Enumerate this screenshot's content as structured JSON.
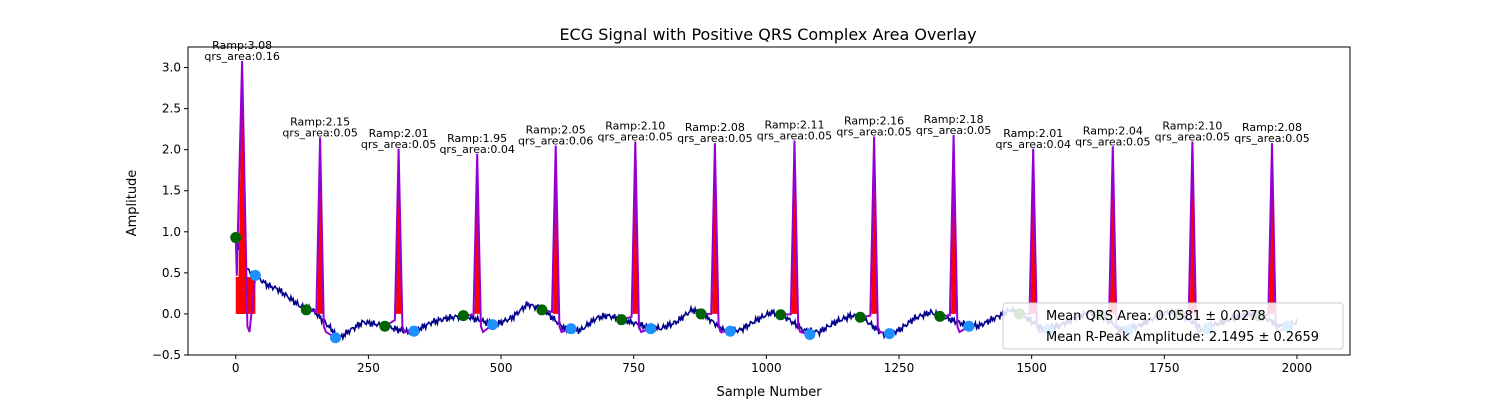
{
  "chart_data": {
    "type": "line",
    "title": "ECG Signal with Positive QRS Complex Area Overlay",
    "xlabel": "Sample Number",
    "ylabel": "Amplitude",
    "xlim": [
      -90,
      2100
    ],
    "ylim": [
      -0.5,
      3.25
    ],
    "xticks": [
      0,
      250,
      500,
      750,
      1000,
      1250,
      1500,
      1750,
      2000
    ],
    "xtick_labels": [
      "0",
      "250",
      "500",
      "750",
      "1000",
      "1250",
      "1500",
      "1750",
      "2000"
    ],
    "yticks": [
      -0.5,
      0.0,
      0.5,
      1.0,
      1.5,
      2.0,
      2.5,
      3.0
    ],
    "ytick_labels": [
      "−0.5",
      "0.0",
      "0.5",
      "1.0",
      "1.5",
      "2.0",
      "2.5",
      "3.0"
    ],
    "grid": false,
    "legend_position": "bottom-right",
    "colors": {
      "ecg": "#00008b",
      "qrs_segment": "#9400d3",
      "area_fill": "#ff0000",
      "onset_marker": "#006400",
      "offset_marker": "#1e90ff"
    },
    "beats": [
      {
        "r_index": 12,
        "r_amp": 3.08,
        "qrs_area": 0.16,
        "ramp_label": "Ramp:3.08",
        "area_label": "qrs_area:0.16",
        "onset_x": 0,
        "onset_y": 0.93,
        "offset_x": 37,
        "offset_y": 0.47
      },
      {
        "r_index": 159,
        "r_amp": 2.15,
        "qrs_area": 0.05,
        "ramp_label": "Ramp:2.15",
        "area_label": "qrs_area:0.05",
        "onset_x": 133,
        "onset_y": 0.05,
        "offset_x": 188,
        "offset_y": -0.29
      },
      {
        "r_index": 307,
        "r_amp": 2.01,
        "qrs_area": 0.05,
        "ramp_label": "Ramp:2.01",
        "area_label": "qrs_area:0.05",
        "onset_x": 281,
        "onset_y": -0.15,
        "offset_x": 336,
        "offset_y": -0.21
      },
      {
        "r_index": 455,
        "r_amp": 1.95,
        "qrs_area": 0.04,
        "ramp_label": "Ramp:1.95",
        "area_label": "qrs_area:0.04",
        "onset_x": 429,
        "onset_y": -0.02,
        "offset_x": 484,
        "offset_y": -0.13
      },
      {
        "r_index": 603,
        "r_amp": 2.05,
        "qrs_area": 0.06,
        "ramp_label": "Ramp:2.05",
        "area_label": "qrs_area:0.06",
        "onset_x": 577,
        "onset_y": 0.05,
        "offset_x": 632,
        "offset_y": -0.18
      },
      {
        "r_index": 753,
        "r_amp": 2.1,
        "qrs_area": 0.05,
        "ramp_label": "Ramp:2.10",
        "area_label": "qrs_area:0.05",
        "onset_x": 727,
        "onset_y": -0.07,
        "offset_x": 782,
        "offset_y": -0.18
      },
      {
        "r_index": 903,
        "r_amp": 2.08,
        "qrs_area": 0.05,
        "ramp_label": "Ramp:2.08",
        "area_label": "qrs_area:0.05",
        "onset_x": 877,
        "onset_y": 0.0,
        "offset_x": 932,
        "offset_y": -0.21
      },
      {
        "r_index": 1053,
        "r_amp": 2.11,
        "qrs_area": 0.05,
        "ramp_label": "Ramp:2.11",
        "area_label": "qrs_area:0.05",
        "onset_x": 1027,
        "onset_y": -0.01,
        "offset_x": 1082,
        "offset_y": -0.25
      },
      {
        "r_index": 1203,
        "r_amp": 2.16,
        "qrs_area": 0.05,
        "ramp_label": "Ramp:2.16",
        "area_label": "qrs_area:0.05",
        "onset_x": 1177,
        "onset_y": -0.04,
        "offset_x": 1232,
        "offset_y": -0.24
      },
      {
        "r_index": 1353,
        "r_amp": 2.18,
        "qrs_area": 0.05,
        "ramp_label": "Ramp:2.18",
        "area_label": "qrs_area:0.05",
        "onset_x": 1327,
        "onset_y": -0.03,
        "offset_x": 1382,
        "offset_y": -0.15
      },
      {
        "r_index": 1503,
        "r_amp": 2.01,
        "qrs_area": 0.04,
        "ramp_label": "Ramp:2.01",
        "area_label": "qrs_area:0.04",
        "onset_x": 1477,
        "onset_y": 0.0,
        "offset_x": 1532,
        "offset_y": -0.19
      },
      {
        "r_index": 1653,
        "r_amp": 2.04,
        "qrs_area": 0.05,
        "ramp_label": "Ramp:2.04",
        "area_label": "qrs_area:0.05",
        "onset_x": 1627,
        "onset_y": -0.01,
        "offset_x": 1682,
        "offset_y": -0.2
      },
      {
        "r_index": 1803,
        "r_amp": 2.1,
        "qrs_area": 0.05,
        "ramp_label": "Ramp:2.10",
        "area_label": "qrs_area:0.05",
        "onset_x": 1777,
        "onset_y": 0.0,
        "offset_x": 1832,
        "offset_y": -0.18
      },
      {
        "r_index": 1953,
        "r_amp": 2.08,
        "qrs_area": 0.05,
        "ramp_label": "Ramp:2.08",
        "area_label": "qrs_area:0.05",
        "onset_x": 1927,
        "onset_y": -0.02,
        "offset_x": 1982,
        "offset_y": -0.15
      }
    ],
    "baseline": [
      [
        0,
        0.93
      ],
      [
        20,
        0.55
      ],
      [
        40,
        0.45
      ],
      [
        60,
        0.35
      ],
      [
        80,
        0.3
      ],
      [
        100,
        0.2
      ],
      [
        120,
        0.1
      ],
      [
        145,
        0.05
      ],
      [
        175,
        -0.15
      ],
      [
        195,
        -0.3
      ],
      [
        215,
        -0.2
      ],
      [
        240,
        -0.1
      ],
      [
        260,
        -0.12
      ],
      [
        285,
        -0.15
      ],
      [
        320,
        -0.22
      ],
      [
        340,
        -0.2
      ],
      [
        370,
        -0.1
      ],
      [
        400,
        -0.05
      ],
      [
        430,
        -0.02
      ],
      [
        470,
        -0.1
      ],
      [
        490,
        -0.13
      ],
      [
        520,
        -0.05
      ],
      [
        550,
        0.12
      ],
      [
        580,
        0.05
      ],
      [
        620,
        -0.18
      ],
      [
        650,
        -0.2
      ],
      [
        680,
        -0.05
      ],
      [
        700,
        -0.02
      ],
      [
        730,
        -0.07
      ],
      [
        770,
        -0.15
      ],
      [
        800,
        -0.18
      ],
      [
        830,
        -0.1
      ],
      [
        860,
        0.05
      ],
      [
        880,
        0.0
      ],
      [
        920,
        -0.2
      ],
      [
        950,
        -0.2
      ],
      [
        980,
        -0.08
      ],
      [
        1010,
        0.02
      ],
      [
        1030,
        -0.01
      ],
      [
        1070,
        -0.2
      ],
      [
        1100,
        -0.22
      ],
      [
        1130,
        -0.1
      ],
      [
        1160,
        -0.02
      ],
      [
        1180,
        -0.04
      ],
      [
        1220,
        -0.25
      ],
      [
        1250,
        -0.2
      ],
      [
        1280,
        -0.05
      ],
      [
        1310,
        0.02
      ],
      [
        1330,
        -0.03
      ],
      [
        1370,
        -0.12
      ],
      [
        1400,
        -0.15
      ],
      [
        1430,
        -0.05
      ],
      [
        1460,
        0.05
      ],
      [
        1480,
        0.0
      ],
      [
        1520,
        -0.18
      ],
      [
        1550,
        -0.15
      ],
      [
        1580,
        -0.05
      ],
      [
        1610,
        0.02
      ],
      [
        1630,
        -0.01
      ],
      [
        1670,
        -0.2
      ],
      [
        1700,
        -0.15
      ],
      [
        1730,
        -0.05
      ],
      [
        1760,
        0.03
      ],
      [
        1780,
        0.0
      ],
      [
        1820,
        -0.18
      ],
      [
        1850,
        -0.12
      ],
      [
        1880,
        -0.05
      ],
      [
        1910,
        0.0
      ],
      [
        1930,
        -0.02
      ],
      [
        1970,
        -0.15
      ],
      [
        1990,
        -0.12
      ],
      [
        2000,
        -0.1
      ]
    ]
  },
  "legend": {
    "mean_qrs_area": "Mean QRS Area: 0.0581 ± 0.0278",
    "mean_r_peak": "Mean R-Peak Amplitude: 2.1495 ± 0.2659"
  }
}
